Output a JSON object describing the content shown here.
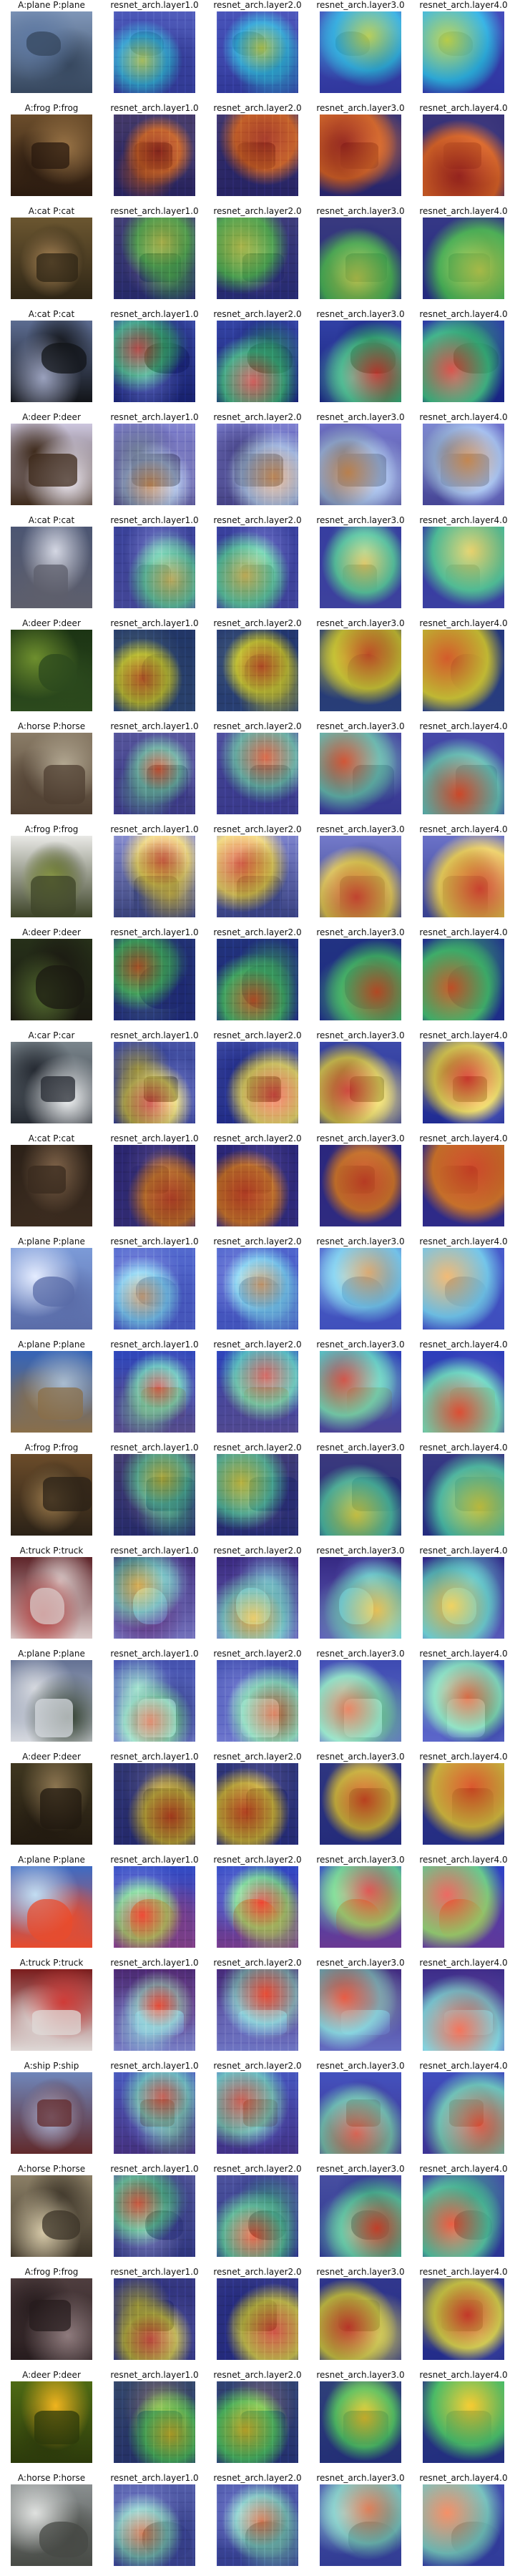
{
  "layer_titles": [
    "resnet_arch.layer1.0",
    "resnet_arch.layer2.0",
    "resnet_arch.layer3.0",
    "resnet_arch.layer4.0"
  ],
  "rows": [
    {
      "label": "A:plane P:plane",
      "scene": [
        "#7f96b8",
        "#5d78a2",
        "#36475e"
      ],
      "heat": [
        "#2d2fbf",
        "#22c8ff",
        "#eaff3a"
      ]
    },
    {
      "label": "A:frog P:frog",
      "scene": [
        "#6b4d2b",
        "#9b7547",
        "#2a1a0f"
      ],
      "heat": [
        "#242a9c",
        "#ff6f2b",
        "#b92121"
      ]
    },
    {
      "label": "A:cat P:cat",
      "scene": [
        "#6b5630",
        "#b18b59",
        "#2f2616"
      ],
      "heat": [
        "#1f2cab",
        "#46d86a",
        "#d2f25a"
      ]
    },
    {
      "label": "A:cat P:cat",
      "scene": [
        "#5c6c91",
        "#9aa1bd",
        "#121418"
      ],
      "heat": [
        "#1b2ab0",
        "#3fdc94",
        "#ff3f2a"
      ]
    },
    {
      "label": "A:deer P:deer",
      "scene": [
        "#ccc6de",
        "#f0ebf5",
        "#3e2a1b"
      ],
      "heat": [
        "#4a52c9",
        "#9cc4ff",
        "#f0a35c"
      ]
    },
    {
      "label": "A:cat P:cat",
      "scene": [
        "#4c5673",
        "#d4d7e3",
        "#5e5f6c"
      ],
      "heat": [
        "#2c32b8",
        "#4be1a4",
        "#f4d441"
      ]
    },
    {
      "label": "A:deer P:deer",
      "scene": [
        "#1c3414",
        "#6e8f2e",
        "#2c4a1d"
      ],
      "heat": [
        "#2738a9",
        "#ffe73e",
        "#ff462a"
      ]
    },
    {
      "label": "A:horse P:horse",
      "scene": [
        "#8a7c67",
        "#b4a993",
        "#4f3f31"
      ],
      "heat": [
        "#2a35c5",
        "#59d2cf",
        "#ff4a24"
      ]
    },
    {
      "label": "A:frog P:frog",
      "scene": [
        "#e9e9e6",
        "#8e9d4a",
        "#3d4428"
      ],
      "heat": [
        "#3640bc",
        "#ffd84f",
        "#ff3b2f"
      ]
    },
    {
      "label": "A:deer P:deer",
      "scene": [
        "#263019",
        "#536b2f",
        "#1b1a12"
      ],
      "heat": [
        "#2035bc",
        "#4ae48c",
        "#ff5e2d"
      ]
    },
    {
      "label": "A:car P:car",
      "scene": [
        "#7b868d",
        "#f2f4f5",
        "#252a32"
      ],
      "heat": [
        "#1e2cbb",
        "#ffe64a",
        "#ff3320"
      ]
    },
    {
      "label": "A:cat P:cat",
      "scene": [
        "#2c2118",
        "#7f6349",
        "#3a2b1f"
      ],
      "heat": [
        "#2a2bb5",
        "#ff8b2e",
        "#f34022"
      ]
    },
    {
      "label": "A:plane P:plane",
      "scene": [
        "#7c9bd8",
        "#e4ecff",
        "#5a6ca8"
      ],
      "heat": [
        "#3342c7",
        "#6fd8f4",
        "#f8a63d"
      ]
    },
    {
      "label": "A:plane P:plane",
      "scene": [
        "#3564b8",
        "#a9bcd0",
        "#8a6f49"
      ],
      "heat": [
        "#2b2fbe",
        "#69f0cb",
        "#ff4029"
      ]
    },
    {
      "label": "A:frog P:frog",
      "scene": [
        "#6b4c2a",
        "#a3804f",
        "#2b2217"
      ],
      "heat": [
        "#2231ab",
        "#4ae4d1",
        "#eef24a"
      ]
    },
    {
      "label": "A:truck P:truck",
      "scene": [
        "#5f252a",
        "#b23b3a",
        "#d9c9c8"
      ],
      "heat": [
        "#202bb3",
        "#41d2d8",
        "#ffe443"
      ]
    },
    {
      "label": "A:plane P:plane",
      "scene": [
        "#637193",
        "#2d3b2a",
        "#d6d9df"
      ],
      "heat": [
        "#2a37c2",
        "#7ff0c4",
        "#ff6631"
      ]
    },
    {
      "label": "A:deer P:deer",
      "scene": [
        "#3f3720",
        "#8d7651",
        "#221a10"
      ],
      "heat": [
        "#2636b4",
        "#ffe14a",
        "#ff4d22"
      ]
    },
    {
      "label": "A:plane P:plane",
      "scene": [
        "#3d6bc4",
        "#c2ddf2",
        "#e84c2d"
      ],
      "heat": [
        "#2731c8",
        "#73f07b",
        "#ff3a27"
      ]
    },
    {
      "label": "A:truck P:truck",
      "scene": [
        "#7a1d1d",
        "#cf3b37",
        "#dfd9d7"
      ],
      "heat": [
        "#2433b6",
        "#5cd5e6",
        "#ff4f2d"
      ]
    },
    {
      "label": "A:ship P:ship",
      "scene": [
        "#6f86ba",
        "#b2c0e4",
        "#612a2b"
      ],
      "heat": [
        "#2d37c1",
        "#6ce3c9",
        "#ff5631"
      ]
    },
    {
      "label": "A:horse P:horse",
      "scene": [
        "#8b7f66",
        "#d6c9a8",
        "#3c3428"
      ],
      "heat": [
        "#2436c2",
        "#45dbb8",
        "#ff3c22"
      ]
    },
    {
      "label": "A:frog P:frog",
      "scene": [
        "#4f3e3f",
        "#8f7b7d",
        "#271c1e"
      ],
      "heat": [
        "#2234b8",
        "#f5f34b",
        "#ff3f2a"
      ]
    },
    {
      "label": "A:deer P:deer",
      "scene": [
        "#4e6a14",
        "#f0b41e",
        "#2c3a0b"
      ],
      "heat": [
        "#1f2ab0",
        "#4ce08a",
        "#ffd83b"
      ]
    },
    {
      "label": "A:horse P:horse",
      "scene": [
        "#8a8f90",
        "#dfe1df",
        "#474a45"
      ],
      "heat": [
        "#2735bd",
        "#73d9d5",
        "#ff6f36"
      ]
    }
  ]
}
